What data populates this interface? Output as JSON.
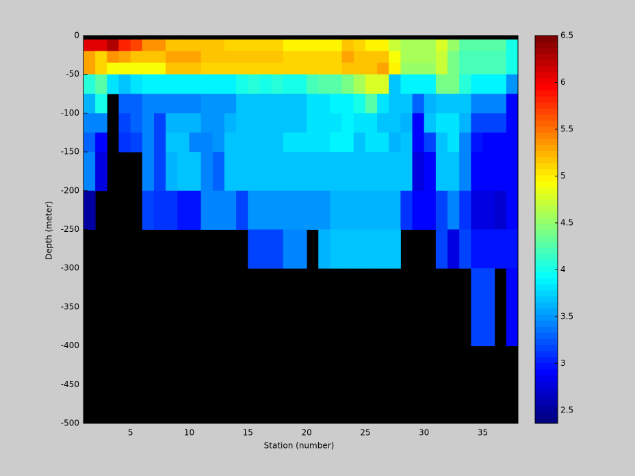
{
  "chart_data": {
    "type": "heatmap",
    "xlabel": "Station (number)",
    "ylabel": "Depth (meter)",
    "x_edges": [
      1,
      2,
      3,
      4,
      5,
      6,
      7,
      8,
      9,
      10,
      11,
      12,
      13,
      14,
      15,
      16,
      17,
      18,
      19,
      20,
      21,
      22,
      23,
      24,
      25,
      26,
      27,
      28,
      29,
      30,
      31,
      32,
      33,
      34,
      35,
      36,
      37,
      38
    ],
    "y_edges": [
      -5,
      -20,
      -35,
      -50,
      -75,
      -100,
      -125,
      -150,
      -200,
      -250,
      -300,
      -400
    ],
    "values": [
      [
        6.1,
        6.1,
        6.3,
        5.8,
        5.7,
        5.4,
        5.4,
        5.2,
        5.2,
        5.2,
        5.2,
        5.2,
        5.1,
        5.1,
        5.1,
        5.1,
        5.1,
        5.0,
        5.0,
        5.0,
        5.0,
        5.0,
        5.2,
        5.1,
        5.0,
        5.0,
        4.7,
        4.6,
        4.6,
        4.6,
        4.8,
        4.5,
        4.3,
        4.3,
        4.3,
        4.3,
        4.0
      ],
      [
        5.3,
        5.1,
        5.4,
        5.3,
        5.2,
        5.2,
        5.2,
        5.3,
        5.3,
        5.3,
        5.2,
        5.2,
        5.2,
        5.2,
        5.2,
        5.2,
        5.2,
        5.1,
        5.1,
        5.1,
        5.1,
        5.1,
        5.3,
        5.2,
        5.2,
        5.2,
        4.9,
        4.6,
        4.6,
        4.6,
        4.7,
        4.4,
        4.2,
        4.2,
        4.2,
        4.2,
        4.0
      ],
      [
        5.3,
        5.1,
        4.9,
        4.9,
        4.9,
        4.9,
        4.9,
        5.2,
        5.2,
        5.2,
        5.1,
        5.1,
        5.1,
        5.1,
        5.1,
        5.1,
        5.1,
        5.1,
        5.1,
        5.1,
        5.1,
        5.1,
        5.2,
        5.2,
        5.2,
        5.3,
        5.0,
        4.5,
        4.5,
        4.5,
        4.7,
        4.4,
        4.2,
        4.2,
        4.2,
        4.2,
        4.0
      ],
      [
        4.1,
        4.3,
        3.8,
        3.7,
        3.8,
        3.9,
        3.9,
        3.9,
        3.9,
        3.9,
        3.9,
        3.9,
        3.9,
        4.0,
        4.1,
        4.0,
        4.1,
        4.0,
        4.0,
        4.2,
        4.3,
        4.3,
        4.4,
        4.6,
        4.8,
        4.8,
        3.7,
        3.9,
        3.9,
        3.9,
        4.4,
        4.4,
        4.1,
        3.9,
        3.9,
        3.9,
        3.5
      ],
      [
        3.6,
        4.0,
        null,
        3.3,
        3.3,
        3.4,
        3.4,
        3.4,
        3.4,
        3.4,
        3.5,
        3.5,
        3.5,
        3.7,
        3.7,
        3.7,
        3.7,
        3.7,
        3.7,
        3.8,
        3.8,
        3.9,
        3.9,
        4.0,
        4.3,
        3.8,
        3.7,
        3.7,
        3.3,
        3.6,
        3.7,
        3.7,
        3.7,
        3.4,
        3.4,
        3.4,
        2.9
      ],
      [
        3.4,
        3.4,
        null,
        3.2,
        3.3,
        3.4,
        3.2,
        3.6,
        3.6,
        3.6,
        3.5,
        3.5,
        3.6,
        3.7,
        3.7,
        3.7,
        3.7,
        3.7,
        3.7,
        3.8,
        3.8,
        3.8,
        3.9,
        3.8,
        3.8,
        3.7,
        3.7,
        3.6,
        2.9,
        3.7,
        3.8,
        3.8,
        3.6,
        3.2,
        3.2,
        3.2,
        2.9
      ],
      [
        3.3,
        2.9,
        null,
        3.1,
        3.2,
        3.4,
        3.2,
        3.7,
        3.7,
        3.4,
        3.4,
        3.5,
        3.7,
        3.7,
        3.7,
        3.7,
        3.7,
        3.8,
        3.8,
        3.8,
        3.8,
        3.9,
        3.9,
        3.7,
        3.8,
        3.8,
        3.6,
        3.7,
        2.9,
        3.2,
        3.7,
        3.8,
        3.4,
        3.0,
        2.9,
        2.9,
        2.9
      ],
      [
        3.4,
        2.8,
        null,
        null,
        null,
        3.4,
        3.2,
        3.6,
        3.7,
        3.7,
        3.4,
        3.3,
        3.7,
        3.7,
        3.7,
        3.7,
        3.7,
        3.7,
        3.7,
        3.7,
        3.7,
        3.7,
        3.7,
        3.7,
        3.7,
        3.7,
        3.7,
        3.7,
        2.8,
        2.9,
        3.7,
        3.7,
        3.4,
        2.9,
        2.9,
        2.9,
        2.9
      ],
      [
        2.5,
        null,
        null,
        null,
        null,
        3.2,
        3.1,
        3.1,
        3.0,
        3.0,
        3.4,
        3.4,
        3.4,
        3.2,
        3.5,
        3.5,
        3.5,
        3.5,
        3.5,
        3.5,
        3.5,
        3.6,
        3.6,
        3.6,
        3.6,
        3.6,
        3.6,
        3.1,
        2.9,
        2.9,
        3.2,
        3.4,
        3.1,
        2.8,
        2.8,
        2.7,
        2.9
      ],
      [
        null,
        null,
        null,
        null,
        null,
        null,
        null,
        null,
        null,
        null,
        null,
        null,
        null,
        null,
        3.2,
        3.2,
        3.2,
        3.4,
        3.4,
        null,
        3.6,
        3.7,
        3.7,
        3.7,
        3.7,
        3.7,
        3.7,
        null,
        null,
        null,
        3.2,
        2.8,
        3.2,
        3.0,
        3.0,
        3.0,
        3.0
      ],
      [
        null,
        null,
        null,
        null,
        null,
        null,
        null,
        null,
        null,
        null,
        null,
        null,
        null,
        null,
        null,
        null,
        null,
        null,
        null,
        null,
        null,
        null,
        null,
        null,
        null,
        null,
        null,
        null,
        null,
        null,
        null,
        null,
        null,
        3.2,
        3.2,
        null,
        2.9
      ]
    ],
    "xlim": [
      1,
      38
    ],
    "ylim": [
      -500,
      0
    ],
    "xticks": [
      5,
      10,
      15,
      20,
      25,
      30,
      35
    ],
    "yticks": [
      -500,
      -450,
      -400,
      -350,
      -300,
      -250,
      -200,
      -150,
      -100,
      -50,
      0
    ],
    "colormap": "jet",
    "clim": [
      2.36,
      6.5
    ],
    "colorbar_ticks": [
      2.5,
      3,
      3.5,
      4,
      4.5,
      5,
      5.5,
      6,
      6.5
    ],
    "background": "#000000"
  }
}
